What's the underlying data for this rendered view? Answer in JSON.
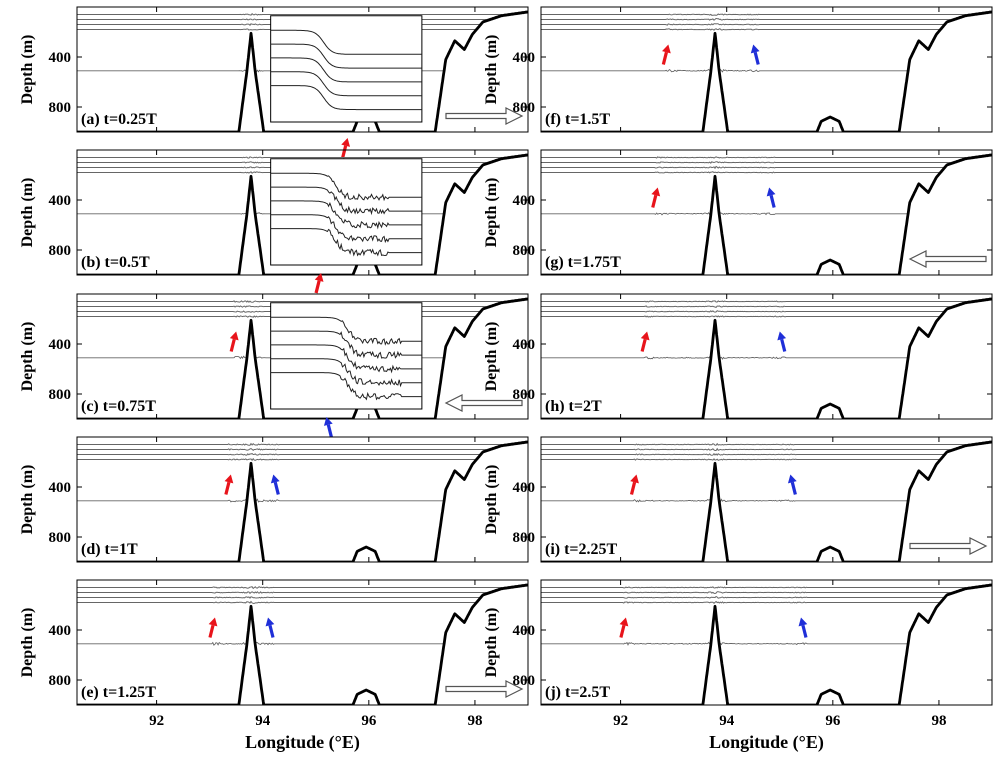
{
  "figure": {
    "xlabel": "Longitude (°E)",
    "ylabel": "Depth (m)"
  },
  "chart_data": {
    "type": "line",
    "xlim": [
      90.5,
      99
    ],
    "ylim": [
      1000,
      0
    ],
    "xticks": [
      92,
      94,
      96,
      98
    ],
    "yticks": [
      400,
      800
    ],
    "xlabel": "Longitude (°E)",
    "ylabel": "Depth (m)",
    "grid": false,
    "panels": [
      {
        "label": "(a) t=0.25T",
        "arrow_direction": "right",
        "inset": true,
        "red_marker_lon": null,
        "blue_marker_lon": null,
        "inset_red": true,
        "inset_blue": false
      },
      {
        "label": "(b) t=0.5T",
        "arrow_direction": null,
        "inset": true,
        "red_marker_lon": null,
        "blue_marker_lon": null,
        "inset_red": true,
        "inset_blue": false
      },
      {
        "label": "(c) t=0.75T",
        "arrow_direction": "left",
        "inset": true,
        "red_marker_lon": 93.5,
        "blue_marker_lon": null,
        "inset_red": false,
        "inset_blue": true
      },
      {
        "label": "(d) t=1T",
        "arrow_direction": null,
        "inset": false,
        "red_marker_lon": 93.4,
        "blue_marker_lon": 94.2
      },
      {
        "label": "(e) t=1.25T",
        "arrow_direction": "right",
        "inset": false,
        "red_marker_lon": 93.1,
        "blue_marker_lon": 94.1
      },
      {
        "label": "(f) t=1.5T",
        "arrow_direction": null,
        "inset": false,
        "red_marker_lon": 92.9,
        "blue_marker_lon": 94.5
      },
      {
        "label": "(g) t=1.75T",
        "arrow_direction": "left",
        "inset": false,
        "red_marker_lon": 92.7,
        "blue_marker_lon": 94.8
      },
      {
        "label": "(h) t=2T",
        "arrow_direction": null,
        "inset": false,
        "red_marker_lon": 92.5,
        "blue_marker_lon": 95.0
      },
      {
        "label": "(i) t=2.25T",
        "arrow_direction": "right",
        "inset": false,
        "red_marker_lon": 92.3,
        "blue_marker_lon": 95.2
      },
      {
        "label": "(j) t=2.5T",
        "arrow_direction": null,
        "inset": false,
        "red_marker_lon": 92.1,
        "blue_marker_lon": 95.4
      }
    ],
    "isopycnal_depths_far_field": [
      60,
      100,
      140,
      180,
      510
    ],
    "topography": [
      [
        90.5,
        1000
      ],
      [
        93.55,
        1000
      ],
      [
        93.7,
        520
      ],
      [
        93.78,
        210
      ],
      [
        93.86,
        520
      ],
      [
        94.02,
        1000
      ],
      [
        95.7,
        1000
      ],
      [
        95.78,
        915
      ],
      [
        95.95,
        880
      ],
      [
        96.12,
        915
      ],
      [
        96.2,
        1000
      ],
      [
        97.25,
        1000
      ],
      [
        97.45,
        420
      ],
      [
        97.62,
        270
      ],
      [
        97.8,
        340
      ],
      [
        97.95,
        220
      ],
      [
        98.15,
        120
      ],
      [
        98.5,
        70
      ],
      [
        99,
        40
      ]
    ],
    "colors": {
      "isopycnal": "#666666",
      "topography": "#000000",
      "red_marker": "#e8141b",
      "blue_marker": "#1f2fd8"
    }
  }
}
